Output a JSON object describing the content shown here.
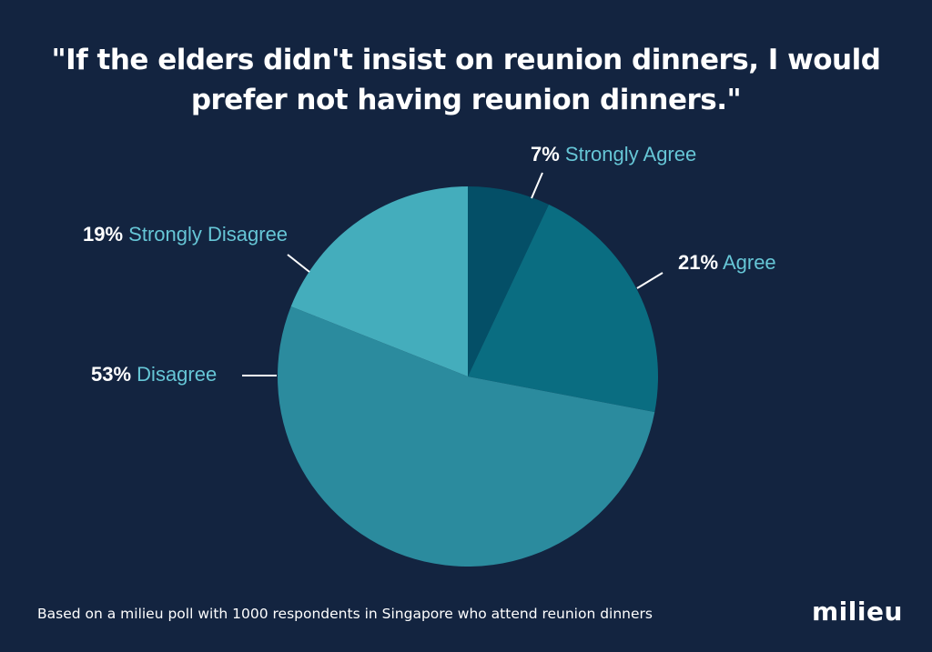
{
  "chart_data": {
    "type": "pie",
    "title_lines": [
      "\"If the elders didn't insist on reunion dinners, I would",
      "prefer not having reunion dinners.\""
    ],
    "slices": [
      {
        "name": "Strongly Agree",
        "pct_label": "7%",
        "value": 7,
        "color": "#044f67"
      },
      {
        "name": "Agree",
        "pct_label": "21%",
        "value": 21,
        "color": "#0a6d81"
      },
      {
        "name": "Disagree",
        "pct_label": "53%",
        "value": 53,
        "color": "#2b8b9e"
      },
      {
        "name": "Strongly Disagree",
        "pct_label": "19%",
        "value": 19,
        "color": "#44adbc"
      }
    ],
    "start": "12 o'clock",
    "direction": "clockwise"
  },
  "footer": {
    "note": "Based on a milieu poll with 1000 respondents in Singapore who attend reunion dinners",
    "brand": "milieu"
  },
  "colors": {
    "background": "#132440",
    "label_name": "#66c6d6",
    "label_pct": "#ffffff"
  }
}
